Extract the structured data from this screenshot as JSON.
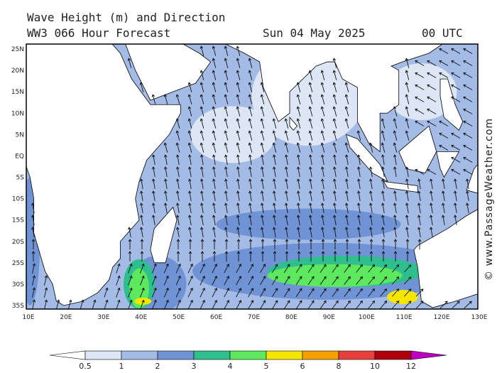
{
  "header": {
    "title": "Wave Height (m) and Direction",
    "model": "WW3 066 Hour Forecast",
    "date": "Sun 04 May 2025",
    "time": "00 UTC"
  },
  "map": {
    "lat_labels": [
      "25N",
      "20N",
      "15N",
      "10N",
      "5N",
      "EQ",
      "5S",
      "10S",
      "15S",
      "20S",
      "25S",
      "30S",
      "35S"
    ],
    "lon_labels": [
      "10E",
      "20E",
      "30E",
      "40E",
      "50E",
      "60E",
      "70E",
      "80E",
      "90E",
      "100E",
      "110E",
      "120E",
      "130E"
    ]
  },
  "legend": {
    "labels": [
      "0.5",
      "1",
      "2",
      "3",
      "4",
      "5",
      "6",
      "8",
      "10",
      "12"
    ],
    "colors": [
      "#dde6f5",
      "#a3bbe5",
      "#6f93d4",
      "#2fbf8f",
      "#5ee85e",
      "#f5e600",
      "#f5a000",
      "#e8403c",
      "#b00010"
    ]
  },
  "credit": "© www.PassageWeather.com"
}
